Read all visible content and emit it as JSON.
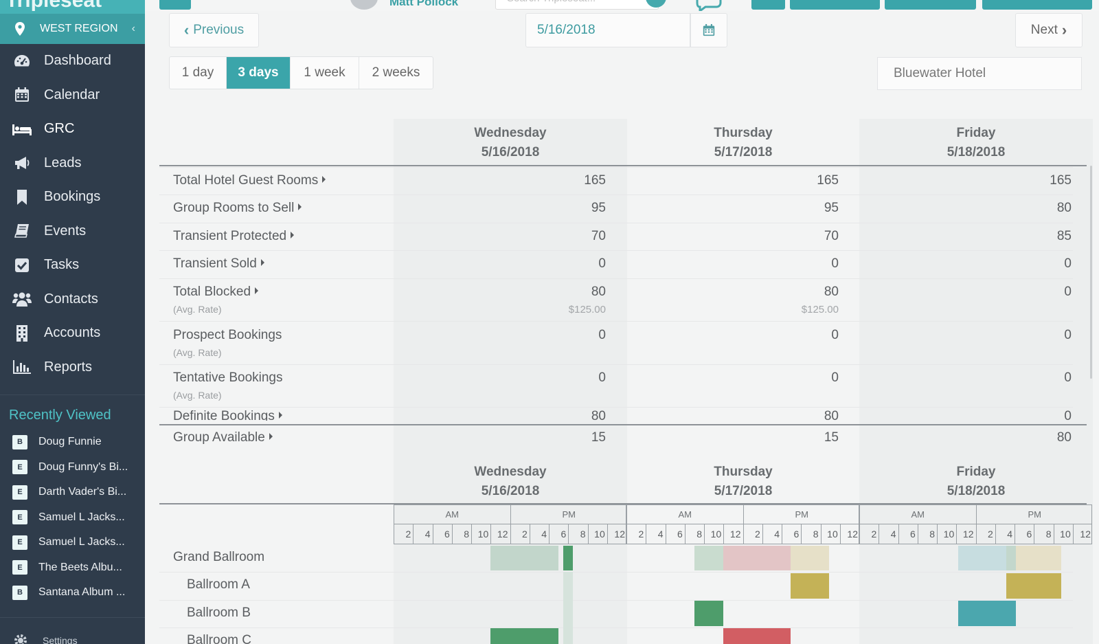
{
  "app": {
    "brand": "Tripleseat"
  },
  "topbar": {
    "user_name": "Matt Pollock",
    "search_placeholder": "Search Tripleseat..."
  },
  "sidebar": {
    "region": "WEST REGION",
    "items": [
      {
        "label": "Dashboard",
        "icon": "dashboard-icon"
      },
      {
        "label": "Calendar",
        "icon": "calendar-icon"
      },
      {
        "label": "GRC",
        "icon": "bed-icon",
        "active": true
      },
      {
        "label": "Leads",
        "icon": "megaphone-icon"
      },
      {
        "label": "Bookings",
        "icon": "bookmark-icon"
      },
      {
        "label": "Events",
        "icon": "book-icon"
      },
      {
        "label": "Tasks",
        "icon": "check-square-icon"
      },
      {
        "label": "Contacts",
        "icon": "users-icon"
      },
      {
        "label": "Accounts",
        "icon": "building-icon"
      },
      {
        "label": "Reports",
        "icon": "bar-chart-icon"
      }
    ],
    "recent_title": "Recently Viewed",
    "recent": [
      {
        "tag": "B",
        "label": "Doug Funnie"
      },
      {
        "tag": "E",
        "label": "Doug Funny's Bi..."
      },
      {
        "tag": "E",
        "label": "Darth Vader's Bi..."
      },
      {
        "tag": "E",
        "label": "Samuel L Jacks..."
      },
      {
        "tag": "E",
        "label": "Samuel L Jacks..."
      },
      {
        "tag": "E",
        "label": "The Beets Albu..."
      },
      {
        "tag": "B",
        "label": "Santana Album ..."
      }
    ],
    "settings_label": "Settings"
  },
  "toolbar": {
    "previous_label": "Previous",
    "next_label": "Next",
    "date": "5/16/2018",
    "ranges": [
      "1 day",
      "3 days",
      "1 week",
      "2 weeks"
    ],
    "active_range": "3 days",
    "hotel": "Bluewater Hotel"
  },
  "days": [
    {
      "weekday": "Wednesday",
      "date": "5/16/2018"
    },
    {
      "weekday": "Thursday",
      "date": "5/17/2018"
    },
    {
      "weekday": "Friday",
      "date": "5/18/2018"
    }
  ],
  "grid": {
    "rows": [
      {
        "label": "Total Hotel Guest Rooms",
        "values": [
          "165",
          "165",
          "165"
        ]
      },
      {
        "label": "Group Rooms to Sell",
        "values": [
          "95",
          "95",
          "80"
        ]
      },
      {
        "label": "Transient Protected",
        "values": [
          "70",
          "70",
          "85"
        ]
      },
      {
        "label": "Transient Sold",
        "values": [
          "0",
          "0",
          "0"
        ]
      },
      {
        "label": "Total Blocked",
        "sub": "(Avg. Rate)",
        "values": [
          "80",
          "80",
          "0"
        ],
        "rates": [
          "$125.00",
          "$125.00",
          ""
        ]
      },
      {
        "label": "Prospect Bookings",
        "sub": "(Avg. Rate)",
        "values": [
          "0",
          "0",
          "0"
        ]
      },
      {
        "label": "Tentative Bookings",
        "sub": "(Avg. Rate)",
        "values": [
          "0",
          "0",
          "0"
        ]
      },
      {
        "label": "Definite Bookings",
        "values": [
          "80",
          "80",
          "0"
        ]
      }
    ],
    "available": {
      "label": "Group Available",
      "values": [
        "15",
        "15",
        "80"
      ]
    }
  },
  "timeline": {
    "am_label": "AM",
    "pm_label": "PM",
    "hours": [
      "2",
      "4",
      "6",
      "8",
      "10",
      "12"
    ],
    "rooms": [
      "Grand Ballroom",
      "Ballroom A",
      "Ballroom B",
      "Ballroom C"
    ],
    "colors": {
      "sage": "#c2d6cb",
      "green": "#4e9d6b",
      "rose": "#e3c5c6",
      "tan": "#e6e0c8",
      "olive": "#c4b257",
      "teal": "#4ba7ae",
      "pale_teal": "#c7dde0",
      "red": "#d25e63"
    }
  }
}
